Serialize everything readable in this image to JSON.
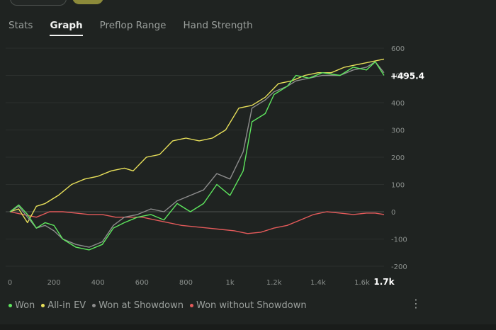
{
  "tabs": [
    {
      "label": "Stats",
      "active": false
    },
    {
      "label": "Graph",
      "active": true
    },
    {
      "label": "Preflop Range",
      "active": false
    },
    {
      "label": "Hand Strength",
      "active": false
    }
  ],
  "legend": [
    {
      "label": "Won",
      "color": "#5ee65e"
    },
    {
      "label": "All-in EV",
      "color": "#e8e05a"
    },
    {
      "label": "Won at Showdown",
      "color": "#8d8d8d"
    },
    {
      "label": "Won without Showdown",
      "color": "#e35a5a"
    }
  ],
  "more_icon": "vertical-ellipsis-icon",
  "chart_data": {
    "type": "line",
    "xlim": [
      0,
      1700
    ],
    "ylim": [
      -200,
      600
    ],
    "x_ticks": [
      "0",
      "200",
      "400",
      "600",
      "800",
      "1k",
      "1.2k",
      "1.4k",
      "1.6k"
    ],
    "x_end_label": "1.7k",
    "y_ticks": [
      "600",
      "500",
      "400",
      "300",
      "200",
      "100",
      "0",
      "-100",
      "-200"
    ],
    "current_value_label": "+495.4",
    "grid": true,
    "series": [
      {
        "name": "Won",
        "color": "#5ee65e",
        "points": [
          [
            0,
            0
          ],
          [
            40,
            25
          ],
          [
            80,
            -10
          ],
          [
            120,
            -60
          ],
          [
            160,
            -40
          ],
          [
            200,
            -50
          ],
          [
            240,
            -100
          ],
          [
            300,
            -130
          ],
          [
            360,
            -140
          ],
          [
            420,
            -120
          ],
          [
            470,
            -60
          ],
          [
            520,
            -40
          ],
          [
            580,
            -20
          ],
          [
            640,
            -10
          ],
          [
            700,
            -30
          ],
          [
            760,
            30
          ],
          [
            820,
            0
          ],
          [
            880,
            30
          ],
          [
            940,
            100
          ],
          [
            1000,
            60
          ],
          [
            1060,
            150
          ],
          [
            1100,
            330
          ],
          [
            1160,
            360
          ],
          [
            1200,
            430
          ],
          [
            1260,
            460
          ],
          [
            1300,
            500
          ],
          [
            1360,
            490
          ],
          [
            1420,
            510
          ],
          [
            1500,
            500
          ],
          [
            1560,
            530
          ],
          [
            1620,
            520
          ],
          [
            1660,
            550
          ],
          [
            1700,
            500
          ]
        ]
      },
      {
        "name": "All-in EV",
        "color": "#e8e05a",
        "points": [
          [
            0,
            0
          ],
          [
            40,
            10
          ],
          [
            80,
            -40
          ],
          [
            120,
            20
          ],
          [
            160,
            30
          ],
          [
            220,
            60
          ],
          [
            280,
            100
          ],
          [
            340,
            120
          ],
          [
            400,
            130
          ],
          [
            460,
            150
          ],
          [
            520,
            160
          ],
          [
            560,
            150
          ],
          [
            620,
            200
          ],
          [
            680,
            210
          ],
          [
            740,
            260
          ],
          [
            800,
            270
          ],
          [
            860,
            260
          ],
          [
            920,
            270
          ],
          [
            980,
            300
          ],
          [
            1040,
            380
          ],
          [
            1100,
            390
          ],
          [
            1160,
            420
          ],
          [
            1220,
            470
          ],
          [
            1280,
            480
          ],
          [
            1340,
            500
          ],
          [
            1400,
            510
          ],
          [
            1460,
            510
          ],
          [
            1520,
            530
          ],
          [
            1580,
            540
          ],
          [
            1640,
            550
          ],
          [
            1700,
            560
          ]
        ]
      },
      {
        "name": "Won at Showdown",
        "color": "#8d8d8d",
        "points": [
          [
            0,
            0
          ],
          [
            40,
            20
          ],
          [
            80,
            -20
          ],
          [
            120,
            -60
          ],
          [
            160,
            -50
          ],
          [
            200,
            -70
          ],
          [
            240,
            -100
          ],
          [
            300,
            -120
          ],
          [
            360,
            -130
          ],
          [
            420,
            -110
          ],
          [
            470,
            -50
          ],
          [
            520,
            -20
          ],
          [
            580,
            -10
          ],
          [
            640,
            10
          ],
          [
            700,
            0
          ],
          [
            760,
            40
          ],
          [
            820,
            60
          ],
          [
            880,
            80
          ],
          [
            940,
            140
          ],
          [
            1000,
            120
          ],
          [
            1060,
            220
          ],
          [
            1100,
            380
          ],
          [
            1160,
            410
          ],
          [
            1200,
            440
          ],
          [
            1260,
            460
          ],
          [
            1300,
            480
          ],
          [
            1360,
            490
          ],
          [
            1420,
            500
          ],
          [
            1500,
            500
          ],
          [
            1560,
            520
          ],
          [
            1620,
            530
          ],
          [
            1660,
            550
          ],
          [
            1700,
            510
          ]
        ]
      },
      {
        "name": "Won without Showdown",
        "color": "#e35a5a",
        "points": [
          [
            0,
            0
          ],
          [
            60,
            -10
          ],
          [
            120,
            -20
          ],
          [
            180,
            0
          ],
          [
            240,
            0
          ],
          [
            300,
            -5
          ],
          [
            360,
            -10
          ],
          [
            420,
            -10
          ],
          [
            480,
            -20
          ],
          [
            540,
            -20
          ],
          [
            600,
            -20
          ],
          [
            660,
            -30
          ],
          [
            720,
            -40
          ],
          [
            780,
            -50
          ],
          [
            840,
            -55
          ],
          [
            900,
            -60
          ],
          [
            960,
            -65
          ],
          [
            1020,
            -70
          ],
          [
            1080,
            -80
          ],
          [
            1140,
            -75
          ],
          [
            1200,
            -60
          ],
          [
            1260,
            -50
          ],
          [
            1320,
            -30
          ],
          [
            1380,
            -10
          ],
          [
            1440,
            0
          ],
          [
            1500,
            -5
          ],
          [
            1560,
            -10
          ],
          [
            1620,
            -5
          ],
          [
            1660,
            -5
          ],
          [
            1700,
            -10
          ]
        ]
      }
    ]
  }
}
